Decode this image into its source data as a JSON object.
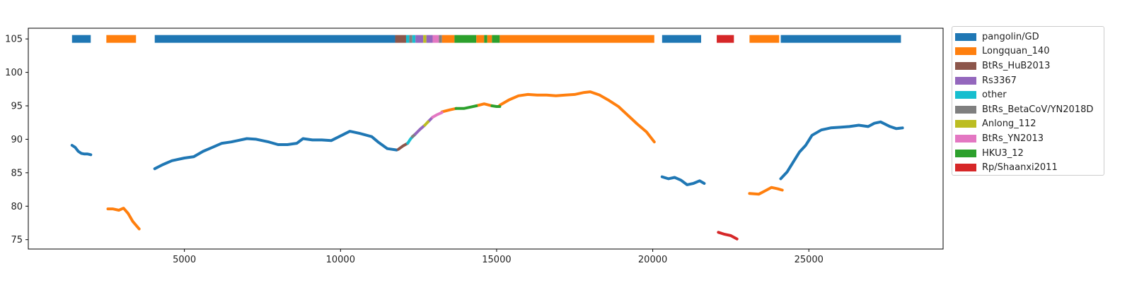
{
  "chart_data": {
    "type": "line",
    "title": "",
    "xlabel": "",
    "ylabel": "",
    "xlim": [
      0,
      29300
    ],
    "ylim": [
      73.6,
      106.6
    ],
    "xticks": [
      5000,
      10000,
      15000,
      20000,
      25000
    ],
    "yticks": [
      75,
      80,
      85,
      90,
      95,
      100,
      105
    ],
    "grid": false,
    "legend_position": "outside-upper-right",
    "colors": {
      "pangolin/GD": "#1f77b4",
      "Longquan_140": "#ff7f0e",
      "BtRs_HuB2013": "#8c564b",
      "Rs3367": "#9467bd",
      "other": "#17becf",
      "BtRs_BetaCoV/YN2018D": "#7f7f7f",
      "Anlong_112": "#bcbd22",
      "BtRs_YN2013": "#e377c2",
      "HKU3_12": "#2ca02c",
      "Rp/Shaanxi2011": "#d62728"
    },
    "legend": [
      "pangolin/GD",
      "Longquan_140",
      "BtRs_HuB2013",
      "Rs3367",
      "other",
      "BtRs_BetaCoV/YN2018D",
      "Anlong_112",
      "BtRs_YN2013",
      "HKU3_12",
      "Rp/Shaanxi2011"
    ],
    "bar_y": 105,
    "bars": [
      {
        "start": 1400,
        "end": 2000,
        "series": "pangolin/GD"
      },
      {
        "start": 2500,
        "end": 3450,
        "series": "Longquan_140"
      },
      {
        "start": 4050,
        "end": 11750,
        "series": "pangolin/GD"
      },
      {
        "start": 11750,
        "end": 12100,
        "series": "BtRs_HuB2013"
      },
      {
        "start": 12100,
        "end": 12200,
        "series": "other"
      },
      {
        "start": 12200,
        "end": 12300,
        "series": "BtRs_BetaCoV/YN2018D"
      },
      {
        "start": 12300,
        "end": 12400,
        "series": "other"
      },
      {
        "start": 12400,
        "end": 12650,
        "series": "Rs3367"
      },
      {
        "start": 12650,
        "end": 12750,
        "series": "Anlong_112"
      },
      {
        "start": 12750,
        "end": 12950,
        "series": "Rs3367"
      },
      {
        "start": 12950,
        "end": 13150,
        "series": "BtRs_YN2013"
      },
      {
        "start": 13150,
        "end": 13250,
        "series": "BtRs_BetaCoV/YN2018D"
      },
      {
        "start": 13250,
        "end": 13650,
        "series": "Longquan_140"
      },
      {
        "start": 13650,
        "end": 14350,
        "series": "HKU3_12"
      },
      {
        "start": 14350,
        "end": 14600,
        "series": "Longquan_140"
      },
      {
        "start": 14600,
        "end": 14700,
        "series": "HKU3_12"
      },
      {
        "start": 14700,
        "end": 14850,
        "series": "Longquan_140"
      },
      {
        "start": 14850,
        "end": 15100,
        "series": "HKU3_12"
      },
      {
        "start": 15100,
        "end": 20050,
        "series": "Longquan_140"
      },
      {
        "start": 20300,
        "end": 21550,
        "series": "pangolin/GD"
      },
      {
        "start": 22050,
        "end": 22600,
        "series": "Rp/Shaanxi2011"
      },
      {
        "start": 23100,
        "end": 24050,
        "series": "Longquan_140"
      },
      {
        "start": 24100,
        "end": 27950,
        "series": "pangolin/GD"
      }
    ],
    "series": [
      {
        "name": "pangolin/GD",
        "color": "#1f77b4",
        "segments": [
          [
            [
              1400,
              89.1
            ],
            [
              1500,
              88.8
            ],
            [
              1600,
              88.2
            ],
            [
              1700,
              87.9
            ],
            [
              1800,
              87.8
            ],
            [
              1900,
              87.8
            ],
            [
              2000,
              87.7
            ]
          ],
          [
            [
              4050,
              85.6
            ],
            [
              4300,
              86.2
            ],
            [
              4600,
              86.8
            ],
            [
              5000,
              87.2
            ],
            [
              5300,
              87.4
            ],
            [
              5600,
              88.2
            ],
            [
              5900,
              88.8
            ],
            [
              6200,
              89.4
            ],
            [
              6500,
              89.6
            ],
            [
              6700,
              89.8
            ],
            [
              7000,
              90.1
            ],
            [
              7300,
              90.0
            ],
            [
              7700,
              89.6
            ],
            [
              8000,
              89.2
            ],
            [
              8300,
              89.2
            ],
            [
              8600,
              89.4
            ],
            [
              8800,
              90.1
            ],
            [
              9100,
              89.9
            ],
            [
              9400,
              89.9
            ],
            [
              9700,
              89.8
            ],
            [
              10000,
              90.5
            ],
            [
              10300,
              91.2
            ],
            [
              10600,
              90.9
            ],
            [
              11000,
              90.4
            ],
            [
              11200,
              89.6
            ],
            [
              11500,
              88.6
            ],
            [
              11800,
              88.4
            ]
          ],
          [
            [
              20300,
              84.4
            ],
            [
              20500,
              84.1
            ],
            [
              20700,
              84.3
            ],
            [
              20900,
              83.9
            ],
            [
              21100,
              83.2
            ],
            [
              21300,
              83.4
            ],
            [
              21500,
              83.8
            ],
            [
              21650,
              83.4
            ]
          ],
          [
            [
              24100,
              84.1
            ],
            [
              24300,
              85.1
            ],
            [
              24500,
              86.6
            ],
            [
              24700,
              88.1
            ],
            [
              24900,
              89.1
            ],
            [
              25100,
              90.6
            ],
            [
              25400,
              91.4
            ],
            [
              25700,
              91.7
            ],
            [
              26000,
              91.8
            ],
            [
              26300,
              91.9
            ],
            [
              26600,
              92.1
            ],
            [
              26900,
              91.9
            ],
            [
              27100,
              92.4
            ],
            [
              27300,
              92.6
            ],
            [
              27600,
              91.9
            ],
            [
              27800,
              91.6
            ],
            [
              28000,
              91.7
            ]
          ]
        ]
      },
      {
        "name": "Longquan_140",
        "color": "#ff7f0e",
        "segments": [
          [
            [
              2550,
              79.6
            ],
            [
              2700,
              79.6
            ],
            [
              2900,
              79.4
            ],
            [
              3050,
              79.7
            ],
            [
              3200,
              78.9
            ],
            [
              3350,
              77.7
            ],
            [
              3550,
              76.6
            ]
          ],
          [
            [
              13250,
              94.1
            ],
            [
              13500,
              94.4
            ],
            [
              13700,
              94.6
            ]
          ],
          [
            [
              14350,
              95.0
            ],
            [
              14600,
              95.3
            ],
            [
              14850,
              95.0
            ]
          ],
          [
            [
              15100,
              95.1
            ],
            [
              15400,
              95.9
            ],
            [
              15700,
              96.5
            ],
            [
              16000,
              96.7
            ],
            [
              16300,
              96.6
            ],
            [
              16600,
              96.6
            ],
            [
              16900,
              96.5
            ],
            [
              17200,
              96.6
            ],
            [
              17500,
              96.7
            ],
            [
              17800,
              97.0
            ],
            [
              18000,
              97.1
            ],
            [
              18300,
              96.6
            ],
            [
              18600,
              95.8
            ],
            [
              18900,
              94.9
            ],
            [
              19200,
              93.6
            ],
            [
              19500,
              92.3
            ],
            [
              19800,
              91.1
            ],
            [
              20050,
              89.6
            ]
          ],
          [
            [
              23100,
              81.9
            ],
            [
              23400,
              81.8
            ],
            [
              23600,
              82.3
            ],
            [
              23800,
              82.8
            ],
            [
              24000,
              82.6
            ],
            [
              24150,
              82.4
            ]
          ]
        ]
      },
      {
        "name": "BtRs_HuB2013",
        "color": "#8c564b",
        "segments": [
          [
            [
              11850,
              88.5
            ],
            [
              12000,
              89.0
            ],
            [
              12150,
              89.4
            ]
          ]
        ]
      },
      {
        "name": "other",
        "color": "#17becf",
        "segments": [
          [
            [
              12150,
              89.4
            ],
            [
              12250,
              90.1
            ],
            [
              12400,
              90.8
            ]
          ]
        ]
      },
      {
        "name": "BtRs_BetaCoV/YN2018D",
        "color": "#7f7f7f",
        "segments": [
          [
            [
              12300,
              90.4
            ],
            [
              12380,
              90.7
            ]
          ]
        ]
      },
      {
        "name": "Rs3367",
        "color": "#9467bd",
        "segments": [
          [
            [
              12400,
              90.8
            ],
            [
              12550,
              91.5
            ],
            [
              12700,
              92.1
            ]
          ],
          [
            [
              12800,
              92.6
            ],
            [
              12950,
              93.3
            ]
          ]
        ]
      },
      {
        "name": "Anlong_112",
        "color": "#bcbd22",
        "segments": [
          [
            [
              12700,
              92.1
            ],
            [
              12800,
              92.6
            ]
          ]
        ]
      },
      {
        "name": "BtRs_YN2013",
        "color": "#e377c2",
        "segments": [
          [
            [
              12950,
              93.3
            ],
            [
              13100,
              93.7
            ],
            [
              13250,
              94.0
            ]
          ]
        ]
      },
      {
        "name": "HKU3_12",
        "color": "#2ca02c",
        "segments": [
          [
            [
              13700,
              94.6
            ],
            [
              13950,
              94.6
            ],
            [
              14150,
              94.8
            ],
            [
              14350,
              95.0
            ]
          ],
          [
            [
              14850,
              95.0
            ],
            [
              15000,
              94.9
            ],
            [
              15100,
              94.9
            ]
          ]
        ]
      },
      {
        "name": "Rp/Shaanxi2011",
        "color": "#d62728",
        "segments": [
          [
            [
              22100,
              76.1
            ],
            [
              22300,
              75.8
            ],
            [
              22500,
              75.6
            ],
            [
              22700,
              75.1
            ]
          ]
        ]
      }
    ]
  }
}
